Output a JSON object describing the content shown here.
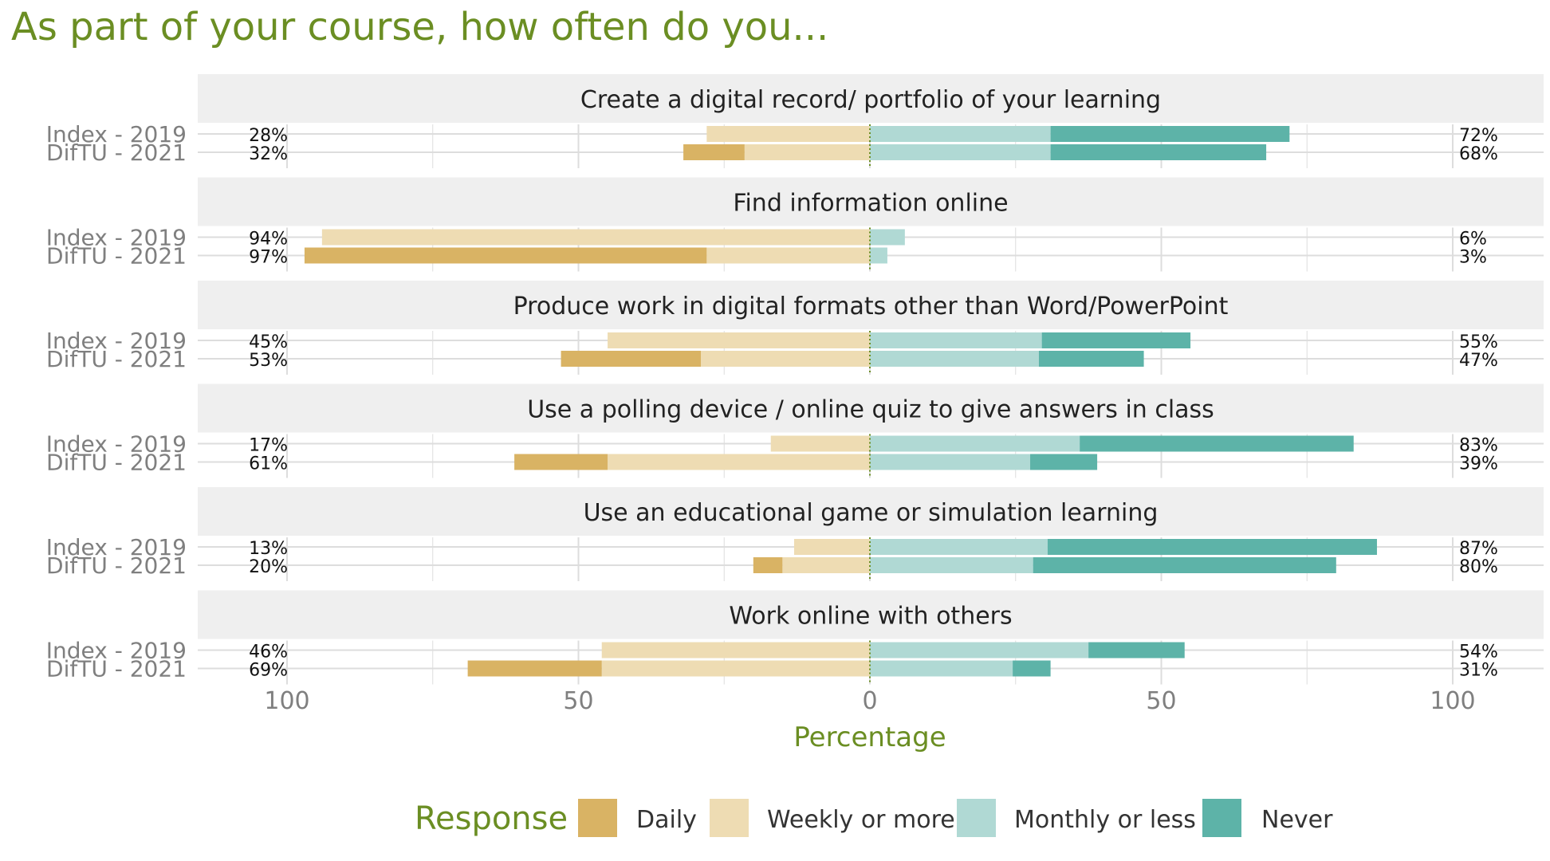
{
  "chart_data": {
    "type": "bar",
    "title": "As part of your course, how often do you...",
    "xlabel": "Percentage",
    "ylabel": "",
    "xlim": [
      -100,
      100
    ],
    "x_ticks": [
      -100,
      -50,
      0,
      50,
      100
    ],
    "x_tick_labels": [
      "100",
      "50",
      "0",
      "50",
      "100"
    ],
    "grid": true,
    "legend_position": "bottom",
    "legend_title": "Response",
    "categories": [
      "Index - 2019",
      "DifTU - 2021"
    ],
    "series": [
      {
        "name": "Daily",
        "side": "negative"
      },
      {
        "name": "Weekly or more",
        "side": "negative"
      },
      {
        "name": "Monthly or less",
        "side": "positive"
      },
      {
        "name": "Never",
        "side": "positive"
      }
    ],
    "panels": [
      {
        "title": "Create a digital record/ portfolio of your learning",
        "rows": [
          {
            "label": "Index - 2019",
            "values": [
              0,
              28,
              31,
              41
            ],
            "left_label": "28%",
            "right_label": "72%"
          },
          {
            "label": "DifTU - 2021",
            "values": [
              10.5,
              21.5,
              31,
              37
            ],
            "left_label": "32%",
            "right_label": "68%"
          }
        ]
      },
      {
        "title": "Find information online",
        "rows": [
          {
            "label": "Index - 2019",
            "values": [
              0,
              94,
              6,
              0
            ],
            "left_label": "94%",
            "right_label": "6%"
          },
          {
            "label": "DifTU - 2021",
            "values": [
              69,
              28,
              3,
              0
            ],
            "left_label": "97%",
            "right_label": "3%"
          }
        ]
      },
      {
        "title": "Produce work in digital formats other than Word/PowerPoint",
        "rows": [
          {
            "label": "Index - 2019",
            "values": [
              0,
              45,
              29.5,
              25.5
            ],
            "left_label": "45%",
            "right_label": "55%"
          },
          {
            "label": "DifTU - 2021",
            "values": [
              24,
              29,
              29,
              18
            ],
            "left_label": "53%",
            "right_label": "47%"
          }
        ]
      },
      {
        "title": "Use a polling device / online quiz to give answers in class",
        "rows": [
          {
            "label": "Index - 2019",
            "values": [
              0,
              17,
              36,
              47
            ],
            "left_label": "17%",
            "right_label": "83%"
          },
          {
            "label": "DifTU - 2021",
            "values": [
              16,
              45,
              27.5,
              11.5
            ],
            "left_label": "61%",
            "right_label": "39%"
          }
        ]
      },
      {
        "title": "Use an educational game or simulation learning",
        "rows": [
          {
            "label": "Index - 2019",
            "values": [
              0,
              13,
              30.5,
              56.5
            ],
            "left_label": "13%",
            "right_label": "87%"
          },
          {
            "label": "DifTU - 2021",
            "values": [
              5,
              15,
              28,
              52
            ],
            "left_label": "20%",
            "right_label": "80%"
          }
        ]
      },
      {
        "title": "Work online with others",
        "rows": [
          {
            "label": "Index - 2019",
            "values": [
              0,
              46,
              37.5,
              16.5
            ],
            "left_label": "46%",
            "right_label": "54%"
          },
          {
            "label": "DifTU - 2021",
            "values": [
              23,
              46,
              24.5,
              6.5
            ],
            "left_label": "69%",
            "right_label": "31%"
          }
        ]
      }
    ]
  },
  "colors": {
    "daily": "#d9b364",
    "weekly_or_more": "#eedcb3",
    "monthly_or_less": "#b0d9d4",
    "never": "#5db3a8",
    "accent_green": "#6b8e23",
    "strip_bg": "#efefef",
    "grid": "#dddddd",
    "axis_text": "#7f7f7f"
  }
}
